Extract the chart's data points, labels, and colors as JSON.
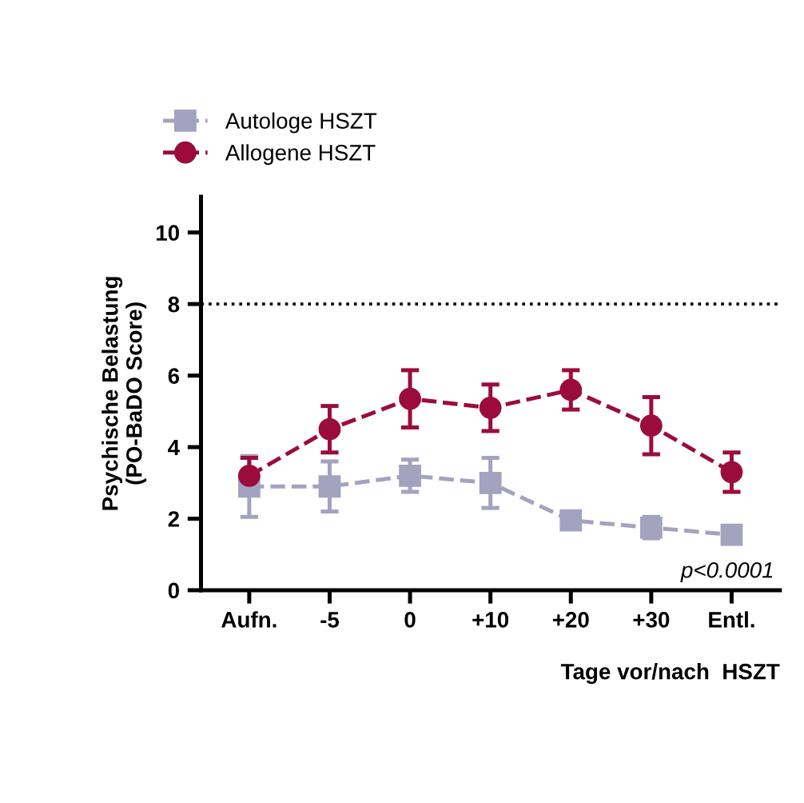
{
  "chart_data": {
    "type": "line",
    "categories": [
      "Aufn.",
      "-5",
      "0",
      "+10",
      "+20",
      "+30",
      "Entl."
    ],
    "series": [
      {
        "name": "Autologe HSZT",
        "color": "#a3a3bf",
        "marker": "square",
        "values": [
          2.9,
          2.9,
          3.2,
          3.0,
          1.95,
          1.75,
          1.55
        ],
        "errors": [
          0.85,
          0.7,
          0.45,
          0.7,
          0.1,
          0.3,
          0.15
        ]
      },
      {
        "name": "Allogene HSZT",
        "color": "#9b0c3c",
        "marker": "circle",
        "values": [
          3.2,
          4.5,
          5.35,
          5.1,
          5.6,
          4.6,
          3.3
        ],
        "errors": [
          0.5,
          0.65,
          0.8,
          0.65,
          0.55,
          0.8,
          0.55
        ]
      }
    ],
    "line_style": "dashed",
    "ylabel": "Psychische Belastung\n(PO-BaDO Score)",
    "xlabel": "Tage vor/nach  HSZT",
    "ylim": [
      0,
      11
    ],
    "yticks": [
      0,
      2,
      4,
      6,
      8,
      10
    ],
    "ref_lines": [
      {
        "axis": "y",
        "value": 8,
        "line_style": "dotted",
        "color": "#000000"
      }
    ],
    "annotations": [
      "p<0.0001"
    ],
    "legend": "top left",
    "grid": false
  }
}
